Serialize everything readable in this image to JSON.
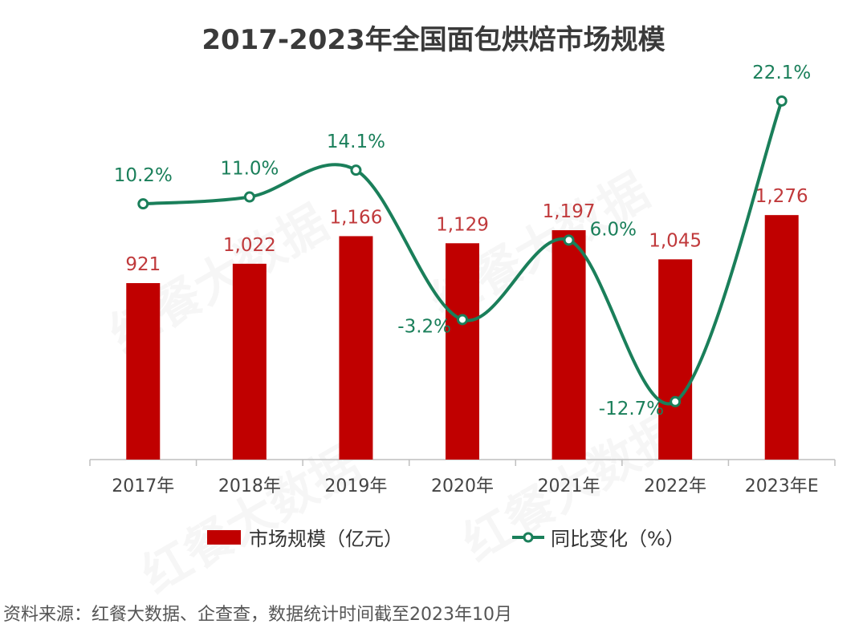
{
  "watermark": "红餐大数据",
  "chart_data": {
    "type": "bar+line",
    "title": "2017-2023年全国面包烘焙市场规模",
    "categories": [
      "2017年",
      "2018年",
      "2019年",
      "2020年",
      "2021年",
      "2022年",
      "2023年E"
    ],
    "series": [
      {
        "name": "市场规模（亿元）",
        "type": "bar",
        "color": "#C00000",
        "label_color": "#C0393B",
        "values": [
          921,
          1022,
          1166,
          1129,
          1197,
          1045,
          1276
        ],
        "labels": [
          "921",
          "1,022",
          "1,166",
          "1,129",
          "1,197",
          "1,045",
          "1,276"
        ]
      },
      {
        "name": "同比变化（%）",
        "type": "line",
        "smooth": true,
        "color": "#1A7F5A",
        "values": [
          10.2,
          11.0,
          14.1,
          -3.2,
          6.0,
          -12.7,
          22.1
        ],
        "labels": [
          "10.2%",
          "11.0%",
          "14.1%",
          "-3.2%",
          "6.0%",
          "-12.7%",
          "22.1%"
        ],
        "label_positions": [
          "above",
          "above",
          "above",
          "left",
          "right",
          "left",
          "above"
        ]
      }
    ],
    "grid": false,
    "legend": "bottom"
  },
  "source": "资料来源：红餐大数据、企查查，数据统计时间截至2023年10月"
}
